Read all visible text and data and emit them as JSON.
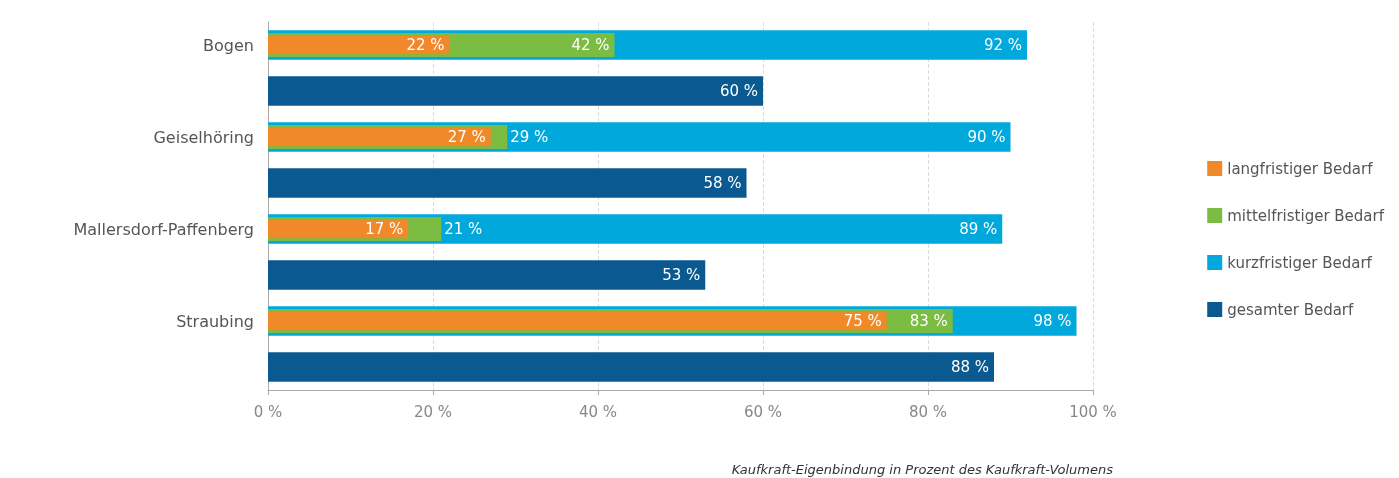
{
  "chart_data": {
    "type": "bar",
    "orientation": "horizontal",
    "categories": [
      "Bogen",
      "Geiselhöring",
      "Mallersdorf-Paffenberg",
      "Straubing"
    ],
    "series": [
      {
        "name": "langfristiger Bedarf",
        "color": "#f0892a",
        "values": [
          22,
          27,
          17,
          75
        ],
        "value_labels": [
          "22 %",
          "27 %",
          "17 %",
          "75 %"
        ]
      },
      {
        "name": "mittelfristiger Bedarf",
        "color": "#7bbd42",
        "values": [
          42,
          29,
          21,
          83
        ],
        "value_labels": [
          "42 %",
          "29 %",
          "21 %",
          "83 %"
        ]
      },
      {
        "name": "kurzfristiger Bedarf",
        "color": "#00a8dc",
        "values": [
          92,
          90,
          89,
          98
        ],
        "value_labels": [
          "92 %",
          "90 %",
          "89 %",
          "98 %"
        ]
      },
      {
        "name": "gesamter Bedarf",
        "color": "#0a5a91",
        "values": [
          60,
          58,
          53,
          88
        ],
        "value_labels": [
          "60 %",
          "58 %",
          "53 %",
          "88 %"
        ]
      }
    ],
    "xlim": [
      0,
      100
    ],
    "xticks": [
      {
        "value": 0,
        "label": "0 %"
      },
      {
        "value": 20,
        "label": "20 %"
      },
      {
        "value": 40,
        "label": "40 %"
      },
      {
        "value": 60,
        "label": "60 %"
      },
      {
        "value": 80,
        "label": "80 %"
      },
      {
        "value": 100,
        "label": "100 %"
      }
    ],
    "grid": "x",
    "legend": "right",
    "annotations": [
      "Kaufkraft-Eigenbindung in Prozent des Kaufkraft-Volumens"
    ]
  }
}
